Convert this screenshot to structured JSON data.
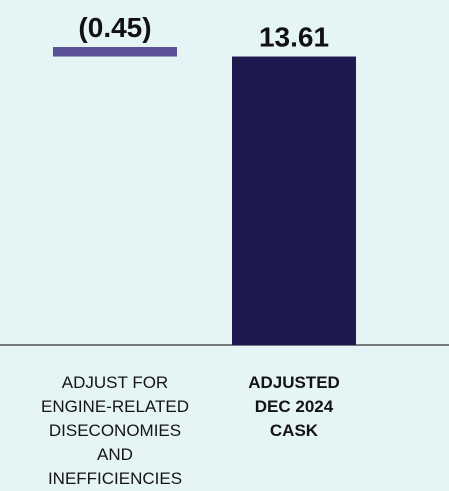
{
  "chart_data": {
    "type": "bar",
    "subtype": "waterfall",
    "categories": [
      "Adjust for\nengine-related\ndiseconomies\nand\ninefficiencies",
      "Adjusted\nDEC 2024\nCASK"
    ],
    "values": [
      -0.45,
      13.61
    ],
    "bar_start": [
      14.06,
      0
    ],
    "bar_end": [
      13.61,
      13.61
    ],
    "value_labels": [
      "(0.45)",
      "13.61"
    ],
    "ylim": [
      0,
      14.06
    ],
    "grid": false,
    "legend": "none",
    "colors": {
      "background": "#e5f4f5",
      "decrease": "#5b5196",
      "total": "#1e1a4f",
      "baseline": "#333333",
      "text": "#111111"
    }
  }
}
